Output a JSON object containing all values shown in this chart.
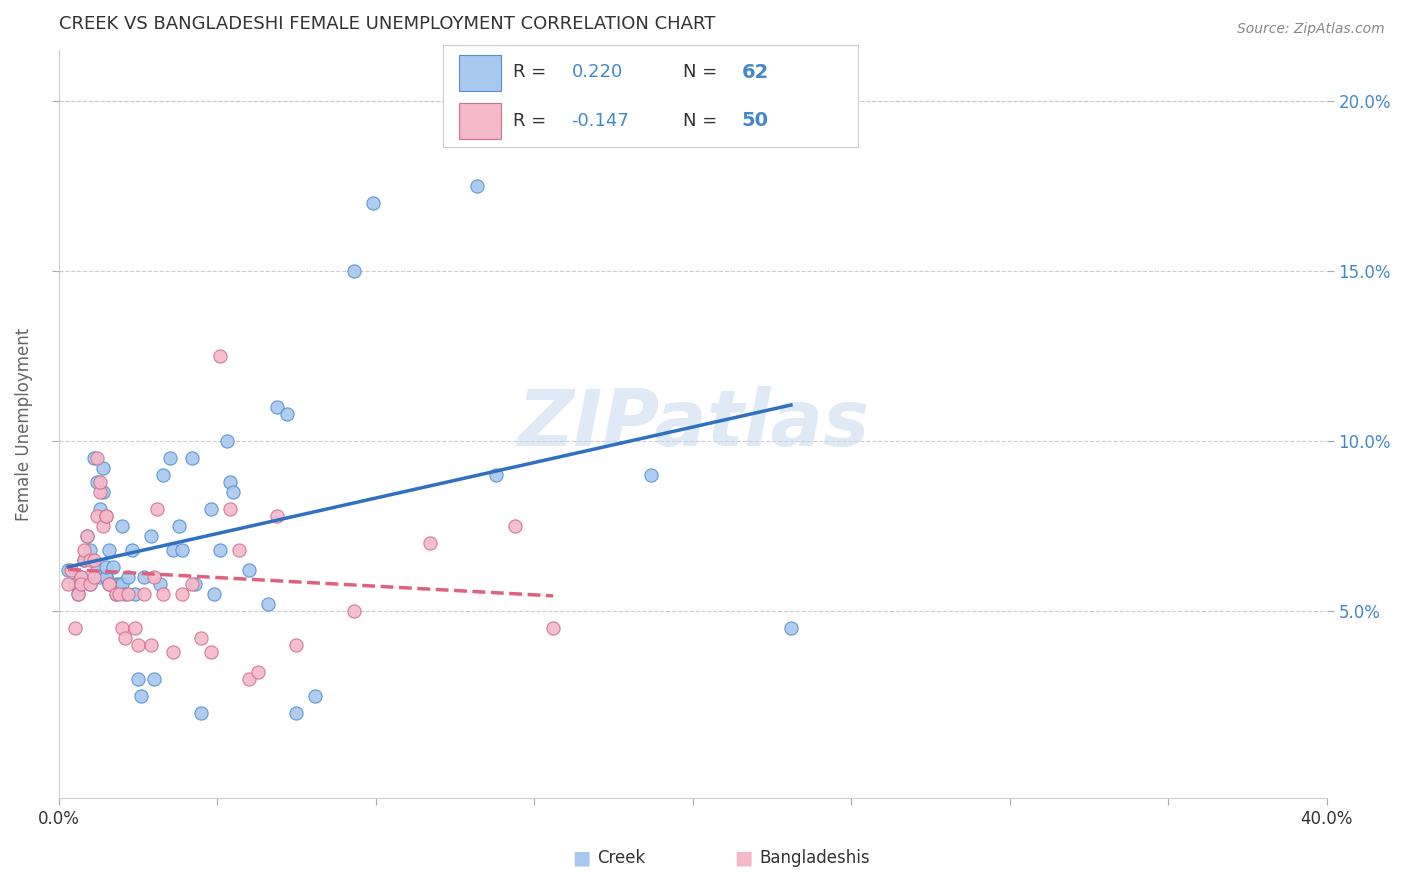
{
  "title": "CREEK VS BANGLADESHI FEMALE UNEMPLOYMENT CORRELATION CHART",
  "source": "Source: ZipAtlas.com",
  "ylabel": "Female Unemployment",
  "xlim": [
    0.0,
    0.4
  ],
  "ylim": [
    -0.005,
    0.215
  ],
  "creek_R": 0.22,
  "creek_N": 62,
  "bangladeshi_R": -0.147,
  "bangladeshi_N": 50,
  "creek_color": "#a8c8f0",
  "bangladeshi_color": "#f5b8c8",
  "creek_line_color": "#3070c0",
  "bangladeshi_line_color": "#e06080",
  "creek_edge_color": "#5090d0",
  "bangladeshi_edge_color": "#d07090",
  "watermark": "ZIPatlas",
  "right_tick_color": "#4488cc",
  "creek_scatter": [
    [
      0.003,
      0.062
    ],
    [
      0.005,
      0.058
    ],
    [
      0.006,
      0.055
    ],
    [
      0.007,
      0.06
    ],
    [
      0.008,
      0.065
    ],
    [
      0.009,
      0.072
    ],
    [
      0.01,
      0.058
    ],
    [
      0.01,
      0.068
    ],
    [
      0.011,
      0.095
    ],
    [
      0.012,
      0.062
    ],
    [
      0.012,
      0.088
    ],
    [
      0.013,
      0.06
    ],
    [
      0.013,
      0.08
    ],
    [
      0.014,
      0.085
    ],
    [
      0.014,
      0.092
    ],
    [
      0.015,
      0.06
    ],
    [
      0.015,
      0.06
    ],
    [
      0.015,
      0.063
    ],
    [
      0.016,
      0.068
    ],
    [
      0.016,
      0.058
    ],
    [
      0.017,
      0.063
    ],
    [
      0.018,
      0.058
    ],
    [
      0.018,
      0.055
    ],
    [
      0.019,
      0.058
    ],
    [
      0.02,
      0.075
    ],
    [
      0.02,
      0.058
    ],
    [
      0.021,
      0.055
    ],
    [
      0.022,
      0.06
    ],
    [
      0.023,
      0.068
    ],
    [
      0.024,
      0.055
    ],
    [
      0.025,
      0.03
    ],
    [
      0.026,
      0.025
    ],
    [
      0.027,
      0.06
    ],
    [
      0.029,
      0.072
    ],
    [
      0.03,
      0.03
    ],
    [
      0.032,
      0.058
    ],
    [
      0.033,
      0.09
    ],
    [
      0.035,
      0.095
    ],
    [
      0.036,
      0.068
    ],
    [
      0.038,
      0.075
    ],
    [
      0.039,
      0.068
    ],
    [
      0.042,
      0.095
    ],
    [
      0.043,
      0.058
    ],
    [
      0.045,
      0.02
    ],
    [
      0.048,
      0.08
    ],
    [
      0.049,
      0.055
    ],
    [
      0.051,
      0.068
    ],
    [
      0.053,
      0.1
    ],
    [
      0.054,
      0.088
    ],
    [
      0.055,
      0.085
    ],
    [
      0.06,
      0.062
    ],
    [
      0.066,
      0.052
    ],
    [
      0.069,
      0.11
    ],
    [
      0.072,
      0.108
    ],
    [
      0.075,
      0.02
    ],
    [
      0.081,
      0.025
    ],
    [
      0.093,
      0.15
    ],
    [
      0.099,
      0.17
    ],
    [
      0.132,
      0.175
    ],
    [
      0.138,
      0.09
    ],
    [
      0.187,
      0.09
    ],
    [
      0.231,
      0.045
    ]
  ],
  "bangladeshi_scatter": [
    [
      0.003,
      0.058
    ],
    [
      0.004,
      0.062
    ],
    [
      0.005,
      0.045
    ],
    [
      0.006,
      0.055
    ],
    [
      0.007,
      0.06
    ],
    [
      0.007,
      0.058
    ],
    [
      0.008,
      0.065
    ],
    [
      0.008,
      0.068
    ],
    [
      0.009,
      0.072
    ],
    [
      0.01,
      0.065
    ],
    [
      0.01,
      0.058
    ],
    [
      0.011,
      0.06
    ],
    [
      0.011,
      0.065
    ],
    [
      0.012,
      0.078
    ],
    [
      0.012,
      0.095
    ],
    [
      0.013,
      0.085
    ],
    [
      0.013,
      0.088
    ],
    [
      0.014,
      0.075
    ],
    [
      0.015,
      0.078
    ],
    [
      0.015,
      0.078
    ],
    [
      0.016,
      0.058
    ],
    [
      0.016,
      0.058
    ],
    [
      0.018,
      0.055
    ],
    [
      0.019,
      0.055
    ],
    [
      0.02,
      0.045
    ],
    [
      0.021,
      0.042
    ],
    [
      0.022,
      0.055
    ],
    [
      0.024,
      0.045
    ],
    [
      0.025,
      0.04
    ],
    [
      0.027,
      0.055
    ],
    [
      0.029,
      0.04
    ],
    [
      0.03,
      0.06
    ],
    [
      0.031,
      0.08
    ],
    [
      0.033,
      0.055
    ],
    [
      0.036,
      0.038
    ],
    [
      0.039,
      0.055
    ],
    [
      0.042,
      0.058
    ],
    [
      0.045,
      0.042
    ],
    [
      0.048,
      0.038
    ],
    [
      0.051,
      0.125
    ],
    [
      0.054,
      0.08
    ],
    [
      0.057,
      0.068
    ],
    [
      0.06,
      0.03
    ],
    [
      0.063,
      0.032
    ],
    [
      0.069,
      0.078
    ],
    [
      0.075,
      0.04
    ],
    [
      0.093,
      0.05
    ],
    [
      0.117,
      0.07
    ],
    [
      0.144,
      0.075
    ],
    [
      0.156,
      0.045
    ]
  ]
}
